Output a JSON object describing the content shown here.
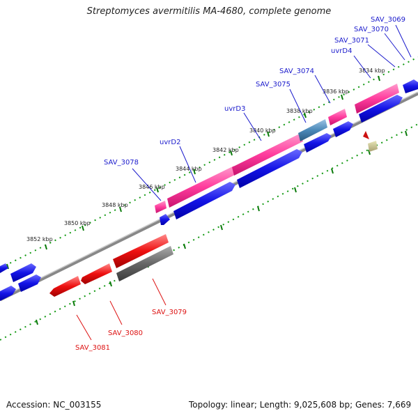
{
  "title": "Streptomyces avermitilis MA-4680, complete genome",
  "footer": {
    "accession": "Accession: NC_003155",
    "summary": "Topology: linear; Length: 9,025,608 bp; Genes: 7,669"
  },
  "ruler_labels": [
    "3834 kbp",
    "3836 kbp",
    "3838 kbp",
    "3840 kbp",
    "3842 kbp",
    "3844 kbp",
    "3846 kbp",
    "3848 kbp",
    "3850 kbp",
    "3852 kbp"
  ],
  "genes": [
    {
      "name": "SAV_3069",
      "strand": "forward"
    },
    {
      "name": "SAV_3070",
      "strand": "forward"
    },
    {
      "name": "SAV_3071",
      "strand": "forward"
    },
    {
      "name": "uvrD4",
      "strand": "forward"
    },
    {
      "name": "SAV_3074",
      "strand": "forward"
    },
    {
      "name": "SAV_3075",
      "strand": "forward"
    },
    {
      "name": "uvrD3",
      "strand": "forward"
    },
    {
      "name": "uvrD2",
      "strand": "forward"
    },
    {
      "name": "SAV_3078",
      "strand": "forward"
    },
    {
      "name": "SAV_3079",
      "strand": "reverse"
    },
    {
      "name": "SAV_3080",
      "strand": "reverse"
    },
    {
      "name": "SAV_3081",
      "strand": "reverse"
    }
  ],
  "colors": {
    "forward_label": "#1a1acc",
    "reverse_label": "#dd1111",
    "forward_gene": "#1010e0",
    "reverse_gene": "#ee1010",
    "pink_feature": "#ff3d9e",
    "steel_feature": "#4a88b8",
    "gray_feature": "#666666",
    "tick_green": "#119911",
    "backbone": "#888888"
  }
}
